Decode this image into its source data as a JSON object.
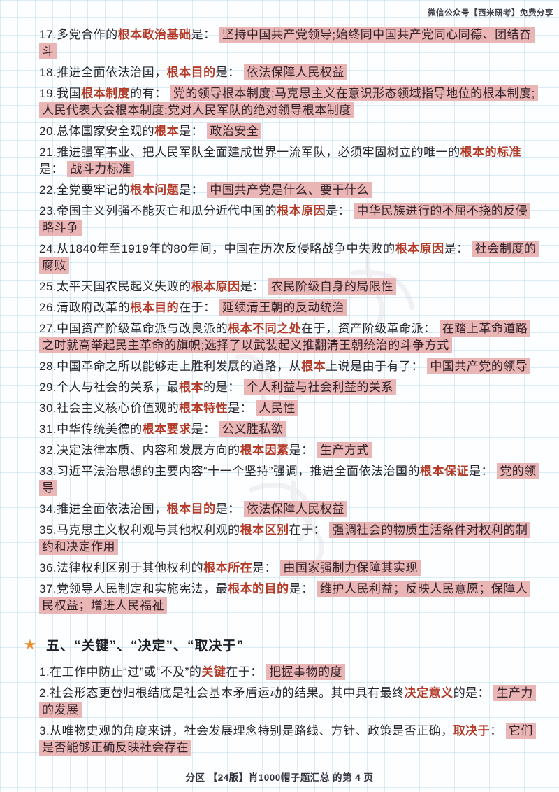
{
  "header": {
    "note": "微信公众号【西米研考】免费分享"
  },
  "footer": {
    "text": "分区 【24版】肖1000帽子题汇总 的第 4 页"
  },
  "section_five": {
    "star_icon": "★",
    "title": "五、“关键”、“决定”、“取决于”"
  },
  "colors": {
    "keyword_red": "#b43b28",
    "highlight_pink": "#e9b5b5",
    "grid_blue": "#8cc3e4",
    "star_orange": "#ef8f2e",
    "body_text": "#26262f"
  },
  "items_genben": [
    {
      "segments": [
        {
          "t": "17.多党合作的",
          "s": "n"
        },
        {
          "t": "根本政治基础",
          "s": "r"
        },
        {
          "t": "是： ",
          "s": "n"
        },
        {
          "t": "坚持中国共产党领导;始终同中国共产党同心同德、团结奋斗",
          "s": "h"
        }
      ]
    },
    {
      "segments": [
        {
          "t": "18.推进全面依法治国，",
          "s": "n"
        },
        {
          "t": "根本目的",
          "s": "r"
        },
        {
          "t": "是： ",
          "s": "n"
        },
        {
          "t": "依法保障人民权益",
          "s": "h"
        }
      ]
    },
    {
      "segments": [
        {
          "t": "19.我国",
          "s": "n"
        },
        {
          "t": "根本制度",
          "s": "r"
        },
        {
          "t": "的有： ",
          "s": "n"
        },
        {
          "t": "党的领导根本制度;马克思主义在意识形态领域指导地位的根本制度;人民代表大会根本制度;党对人民军队的绝对领导根本制度",
          "s": "h"
        }
      ]
    },
    {
      "segments": [
        {
          "t": "20.总体国家安全观的",
          "s": "n"
        },
        {
          "t": "根本",
          "s": "r"
        },
        {
          "t": "是： ",
          "s": "n"
        },
        {
          "t": "政治安全",
          "s": "h"
        }
      ]
    },
    {
      "segments": [
        {
          "t": "21.推进强军事业、把人民军队全面建成世界一流军队，必须牢固树立的唯一的",
          "s": "n"
        },
        {
          "t": "根本的标准",
          "s": "r"
        },
        {
          "t": "是： ",
          "s": "n"
        },
        {
          "t": "战斗力标准",
          "s": "h"
        }
      ]
    },
    {
      "segments": [
        {
          "t": "22.全党要牢记的",
          "s": "n"
        },
        {
          "t": "根本问题",
          "s": "r"
        },
        {
          "t": "是： ",
          "s": "n"
        },
        {
          "t": "中国共产党是什么、要干什么",
          "s": "h"
        }
      ]
    },
    {
      "segments": [
        {
          "t": "23.帝国主义列强不能灭亡和瓜分近代中国的",
          "s": "n"
        },
        {
          "t": "根本原因",
          "s": "r"
        },
        {
          "t": "是： ",
          "s": "n"
        },
        {
          "t": "中华民族进行的不屈不挠的反侵略斗争",
          "s": "h"
        }
      ]
    },
    {
      "segments": [
        {
          "t": "24.从1840年至1919年的80年间，中国在历次反侵略战争中失败的",
          "s": "n"
        },
        {
          "t": "根本原因",
          "s": "r"
        },
        {
          "t": "是： ",
          "s": "n"
        },
        {
          "t": "社会制度的腐败",
          "s": "h"
        }
      ]
    },
    {
      "segments": [
        {
          "t": "25.太平天国农民起义失败的",
          "s": "n"
        },
        {
          "t": "根本原因",
          "s": "r"
        },
        {
          "t": "是： ",
          "s": "n"
        },
        {
          "t": "农民阶级自身的局限性",
          "s": "h"
        }
      ]
    },
    {
      "segments": [
        {
          "t": "26.清政府改革的",
          "s": "n"
        },
        {
          "t": "根本目的",
          "s": "r"
        },
        {
          "t": "在于： ",
          "s": "n"
        },
        {
          "t": "延续清王朝的反动统治",
          "s": "h"
        }
      ]
    },
    {
      "segments": [
        {
          "t": "27.中国资产阶级革命派与改良派的",
          "s": "n"
        },
        {
          "t": "根本不同之处",
          "s": "r"
        },
        {
          "t": "在于，资产阶级革命派： ",
          "s": "n"
        },
        {
          "t": "在踏上革命道路之时就高举起民主革命的旗帜;选择了以武装起义推翻清王朝统治的斗争方式",
          "s": "h"
        }
      ]
    },
    {
      "segments": [
        {
          "t": "28.中国革命之所以能够走上胜利发展的道路，从",
          "s": "n"
        },
        {
          "t": "根本",
          "s": "r"
        },
        {
          "t": "上说是由于有了： ",
          "s": "n"
        },
        {
          "t": "中国共产党的领导",
          "s": "h"
        }
      ]
    },
    {
      "segments": [
        {
          "t": "29.个人与社会的关系，最",
          "s": "n"
        },
        {
          "t": "根本",
          "s": "r"
        },
        {
          "t": "的是： ",
          "s": "n"
        },
        {
          "t": "个人利益与社会利益的关系",
          "s": "h"
        }
      ]
    },
    {
      "segments": [
        {
          "t": "30.社会主义核心价值观的",
          "s": "n"
        },
        {
          "t": "根本特性",
          "s": "r"
        },
        {
          "t": "是： ",
          "s": "n"
        },
        {
          "t": "人民性",
          "s": "h"
        }
      ]
    },
    {
      "segments": [
        {
          "t": "31.中华传统美德的",
          "s": "n"
        },
        {
          "t": "根本要求",
          "s": "r"
        },
        {
          "t": "是： ",
          "s": "n"
        },
        {
          "t": "公义胜私欲",
          "s": "h"
        }
      ]
    },
    {
      "segments": [
        {
          "t": "32.决定法律本质、内容和发展方向的",
          "s": "n"
        },
        {
          "t": "根本因素",
          "s": "r"
        },
        {
          "t": "是： ",
          "s": "n"
        },
        {
          "t": "生产方式",
          "s": "h"
        }
      ]
    },
    {
      "segments": [
        {
          "t": "33.习近平法治思想的主要内容“十一个坚持”强调，推进全面依法治国的",
          "s": "n"
        },
        {
          "t": "根本保证",
          "s": "r"
        },
        {
          "t": "是： ",
          "s": "n"
        },
        {
          "t": "党的领导",
          "s": "h"
        }
      ]
    },
    {
      "segments": [
        {
          "t": "34.推进全面依法治国，",
          "s": "n"
        },
        {
          "t": "根本目的",
          "s": "r"
        },
        {
          "t": "是： ",
          "s": "n"
        },
        {
          "t": "依法保障人民权益",
          "s": "h"
        }
      ]
    },
    {
      "segments": [
        {
          "t": "35.马克思主义权利观与其他权利观的",
          "s": "n"
        },
        {
          "t": "根本区别",
          "s": "r"
        },
        {
          "t": "在于： ",
          "s": "n"
        },
        {
          "t": "强调社会的物质生活条件对权利的制约和决定作用",
          "s": "h"
        }
      ]
    },
    {
      "segments": [
        {
          "t": "36.法律权利区别于其他权利的",
          "s": "n"
        },
        {
          "t": "根本所在",
          "s": "r"
        },
        {
          "t": "是： ",
          "s": "n"
        },
        {
          "t": "由国家强制力保障其实现",
          "s": "h"
        }
      ]
    },
    {
      "segments": [
        {
          "t": "37.党领导人民制定和实施宪法，最",
          "s": "n"
        },
        {
          "t": "根本的目的",
          "s": "r"
        },
        {
          "t": "是： ",
          "s": "n"
        },
        {
          "t": "维护人民利益；反映人民意愿；保障人民权益；增进人民福祉",
          "s": "h"
        }
      ]
    }
  ],
  "items_guanjian": [
    {
      "segments": [
        {
          "t": "1.在工作中防止“过”或“不及”的",
          "s": "n"
        },
        {
          "t": "关键",
          "s": "r"
        },
        {
          "t": "在于： ",
          "s": "n"
        },
        {
          "t": "把握事物的度",
          "s": "h"
        }
      ]
    },
    {
      "segments": [
        {
          "t": "2.社会形态更替归根结底是社会基本矛盾运动的结果。其中具有最终",
          "s": "n"
        },
        {
          "t": "决定意义",
          "s": "r"
        },
        {
          "t": "的是： ",
          "s": "n"
        },
        {
          "t": "生产力的发展",
          "s": "h"
        }
      ]
    },
    {
      "segments": [
        {
          "t": "3.从唯物史观的角度来讲，社会发展理念特别是路线、方针、政策是否正确，",
          "s": "n"
        },
        {
          "t": "取决于",
          "s": "r"
        },
        {
          "t": "： ",
          "s": "n"
        },
        {
          "t": "它们是否能够正确反映社会存在",
          "s": "h"
        }
      ]
    }
  ]
}
